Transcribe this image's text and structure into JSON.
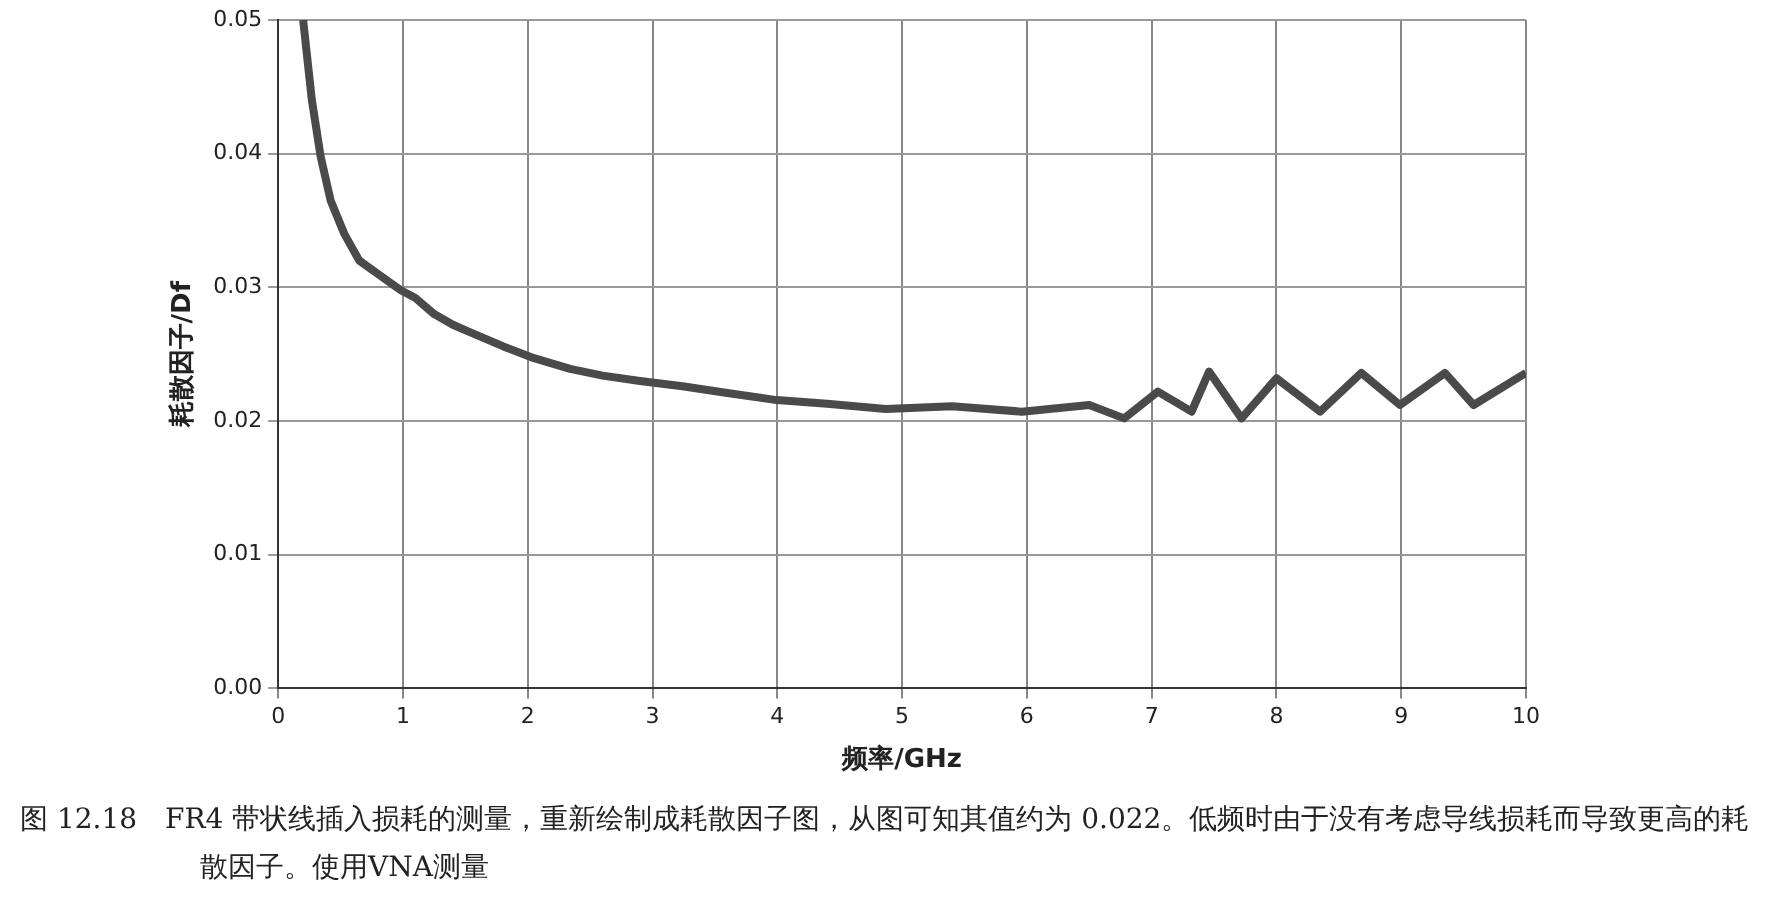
{
  "chart_data": {
    "type": "line",
    "xlabel": "频率/GHz",
    "ylabel": "耗散因子/Df",
    "x": [
      0.2,
      0.27,
      0.34,
      0.42,
      0.53,
      0.65,
      0.8,
      0.98,
      1.1,
      1.25,
      1.4,
      1.55,
      1.8,
      2.05,
      2.34,
      2.6,
      2.9,
      3.24,
      3.6,
      3.97,
      4.4,
      4.87,
      5.4,
      5.96,
      6.5,
      6.78,
      7.05,
      7.32,
      7.46,
      7.72,
      8.0,
      8.35,
      8.68,
      8.99,
      9.35,
      9.58,
      10
    ],
    "series": [
      {
        "color": "#4a4a4a",
        "values": [
          0.05,
          0.044,
          0.0398,
          0.0365,
          0.034,
          0.032,
          0.031,
          0.0298,
          0.0292,
          0.028,
          0.0272,
          0.0266,
          0.0256,
          0.0247,
          0.0239,
          0.0234,
          0.023,
          0.0226,
          0.0221,
          0.0216,
          0.0213,
          0.0209,
          0.0211,
          0.0207,
          0.0212,
          0.0202,
          0.0222,
          0.0207,
          0.0237,
          0.0202,
          0.0232,
          0.0207,
          0.0236,
          0.0212,
          0.0236,
          0.0212,
          0.0236
        ]
      }
    ],
    "xlim": [
      0,
      10
    ],
    "xticks": [
      0,
      1,
      2,
      3,
      4,
      5,
      6,
      7,
      8,
      9,
      10
    ],
    "ylim": [
      0,
      0.05
    ],
    "yticks": [
      {
        "value": 0,
        "label": "0.00"
      },
      {
        "value": 0.01,
        "label": "0.01"
      },
      {
        "value": 0.02,
        "label": "0.02"
      },
      {
        "value": 0.03,
        "label": "0.03"
      },
      {
        "value": 0.04,
        "label": "0.04"
      },
      {
        "value": 0.05,
        "label": "0.05"
      }
    ],
    "grid": true,
    "legend": false,
    "marker": "none",
    "line_style": "solid",
    "annotations": [
      "图 12.18　FR4 带状线插入损耗的测量，重新绘制成耗散因子图，从图可知其值约为 0.022。低频时由于没有考虑导线损耗而导致更高的耗散因子。使用VNA测量"
    ]
  }
}
